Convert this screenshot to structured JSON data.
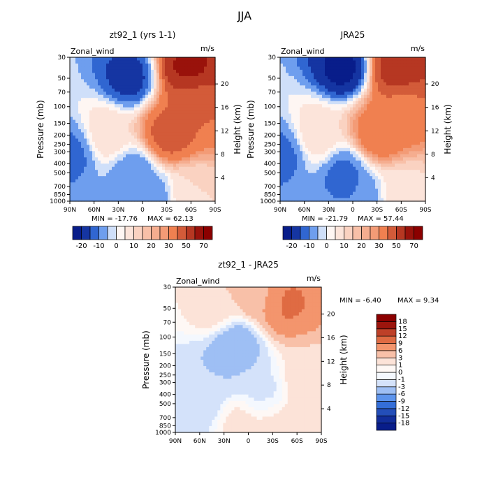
{
  "figure_title": "JJA",
  "colors": {
    "cold_strong": "#081d8a",
    "cold_mid": "#3d7ee8",
    "neutral": "#ffffff",
    "warm_mid": "#f08050",
    "warm_strong": "#8b0000"
  },
  "chart_data": [
    {
      "type": "heatmap",
      "title": "zt92_1 (yrs 1-1)",
      "variable": "Zonal_wind",
      "units": "m/s",
      "ylabel": "Pressure (mb)",
      "ylabel_right": "Height (km)",
      "x_ticks": [
        "90N",
        "60N",
        "30N",
        "0",
        "30S",
        "60S",
        "90S"
      ],
      "y_ticks": [
        30,
        50,
        70,
        100,
        150,
        200,
        250,
        300,
        400,
        500,
        700,
        850,
        1000
      ],
      "right_ticks": [
        4,
        8,
        12,
        16,
        20
      ],
      "min_label": "MIN = -17.76",
      "max_label": "MAX = 62.13",
      "colorbar_labels": [
        "-20",
        "-10",
        "0",
        "10",
        "20",
        "30",
        "50",
        "70"
      ],
      "colorbar_levels": [
        -20,
        -15,
        -10,
        -5,
        0,
        5,
        10,
        15,
        20,
        25,
        30,
        40,
        50,
        60,
        70
      ],
      "features": [
        {
          "x": -85,
          "p": 300,
          "value": -12
        },
        {
          "x": -45,
          "p": 200,
          "value": 10
        },
        {
          "x": -15,
          "p": 50,
          "value": -17.76
        },
        {
          "x": -10,
          "p": 500,
          "value": -10
        },
        {
          "x": 32,
          "p": 200,
          "value": 45
        },
        {
          "x": 55,
          "p": 40,
          "value": 62.13
        },
        {
          "x": 60,
          "p": 100,
          "value": 40
        },
        {
          "x": 60,
          "p": 800,
          "value": 10
        },
        {
          "x": 10,
          "p": 900,
          "value": -10
        }
      ]
    },
    {
      "type": "heatmap",
      "title": "JRA25",
      "variable": "Zonal_wind",
      "units": "m/s",
      "ylabel": "Pressure (mb)",
      "ylabel_right": "Height (km)",
      "x_ticks": [
        "90N",
        "60N",
        "30N",
        "0",
        "30S",
        "60S",
        "90S"
      ],
      "y_ticks": [
        30,
        50,
        70,
        100,
        150,
        200,
        250,
        300,
        400,
        500,
        700,
        850,
        1000
      ],
      "right_ticks": [
        4,
        8,
        12,
        16,
        20
      ],
      "min_label": "MIN = -21.79",
      "max_label": "MAX = 57.44",
      "colorbar_labels": [
        "-20",
        "-10",
        "0",
        "10",
        "20",
        "30",
        "50",
        "70"
      ],
      "colorbar_levels": [
        -20,
        -15,
        -10,
        -5,
        0,
        5,
        10,
        15,
        20,
        25,
        30,
        40,
        50,
        60,
        70
      ],
      "features": [
        {
          "x": -85,
          "p": 300,
          "value": -12
        },
        {
          "x": -45,
          "p": 200,
          "value": 10
        },
        {
          "x": -10,
          "p": 40,
          "value": -21.79
        },
        {
          "x": -10,
          "p": 500,
          "value": -12
        },
        {
          "x": 32,
          "p": 200,
          "value": 38
        },
        {
          "x": 55,
          "p": 40,
          "value": 57.44
        },
        {
          "x": 60,
          "p": 100,
          "value": 38
        },
        {
          "x": 60,
          "p": 800,
          "value": 8
        },
        {
          "x": 10,
          "p": 900,
          "value": -10
        }
      ]
    },
    {
      "type": "heatmap",
      "title": "zt92_1 - JRA25",
      "variable": "Zonal_wind",
      "units": "m/s",
      "ylabel": "Pressure (mb)",
      "ylabel_right": "Height (km)",
      "x_ticks": [
        "90N",
        "60N",
        "30N",
        "0",
        "30S",
        "60S",
        "90S"
      ],
      "y_ticks": [
        30,
        50,
        70,
        100,
        150,
        200,
        250,
        300,
        400,
        500,
        700,
        850,
        1000
      ],
      "right_ticks": [
        4,
        8,
        12,
        16,
        20
      ],
      "min_label": "MIN = -6.40",
      "max_label": "MAX = 9.34",
      "colorbar_labels": [
        "18",
        "15",
        "12",
        "9",
        "6",
        "3",
        "1",
        "0",
        "-1",
        "-3",
        "-6",
        "-9",
        "-12",
        "-15",
        "-18"
      ],
      "colorbar_levels": [
        -18,
        -15,
        -12,
        -9,
        -6,
        -3,
        -1,
        0,
        1,
        3,
        6,
        9,
        12,
        15,
        18
      ],
      "features": [
        {
          "x": -40,
          "p": 60,
          "value": 2
        },
        {
          "x": -20,
          "p": 200,
          "value": -3
        },
        {
          "x": -20,
          "p": 120,
          "value": -6.4
        },
        {
          "x": 8,
          "p": 35,
          "value": 5
        },
        {
          "x": 45,
          "p": 45,
          "value": 9.34
        },
        {
          "x": 70,
          "p": 300,
          "value": 2
        },
        {
          "x": 20,
          "p": 400,
          "value": -1.5
        },
        {
          "x": -60,
          "p": 500,
          "value": -2
        },
        {
          "x": -10,
          "p": 800,
          "value": 1.5
        },
        {
          "x": 30,
          "p": 800,
          "value": 1.5
        },
        {
          "x": 65,
          "p": 800,
          "value": 2
        }
      ]
    }
  ]
}
